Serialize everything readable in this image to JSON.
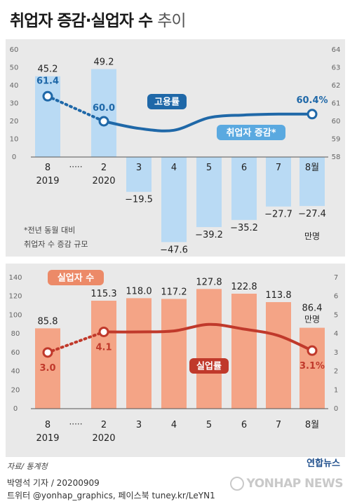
{
  "title": "취업자 증감·실업자 수",
  "title_sub": "추이",
  "chart_data": [
    {
      "type": "bar",
      "title": "취업자 증감",
      "unit": "만명",
      "categories": [
        "8",
        "2",
        "3",
        "4",
        "5",
        "6",
        "7",
        "8월"
      ],
      "year_labels": [
        "2019",
        "2020"
      ],
      "gap_mark": "·····",
      "values": [
        45.2,
        49.2,
        -19.5,
        -47.6,
        -39.2,
        -35.2,
        -27.7,
        -27.4
      ],
      "value_labels": [
        "45.2",
        "49.2",
        "−19.5",
        "−47.6",
        "−39.2",
        "−35.2",
        "−27.7",
        "−27.4"
      ],
      "ylim": [
        -60,
        60
      ],
      "yticks_left": [
        "60",
        "50",
        "40",
        "30",
        "20",
        "10",
        "0"
      ],
      "line": {
        "name": "고용률",
        "values": [
          61.4,
          60.0,
          null,
          59.5,
          null,
          null,
          null,
          60.4
        ],
        "labels": [
          "61.4",
          "60.0",
          "",
          "",
          "",
          "",
          "",
          "60.4%"
        ],
        "curve": [
          61.4,
          60.0,
          59.6,
          59.5,
          60.2,
          60.35,
          60.4,
          60.4
        ]
      },
      "y2lim": [
        58,
        64
      ],
      "yticks_right": [
        "64",
        "63",
        "62",
        "61",
        "60",
        "59",
        "58"
      ],
      "legend_bar": "취업자 증감*",
      "note": [
        "*전년 동월 대비",
        "취업자 수 증감 규모"
      ],
      "colors": {
        "bar": "#b9daf4",
        "line": "#1f68a8",
        "label_box": "#1f68a8",
        "legend_box": "#5aa9e0"
      }
    },
    {
      "type": "bar",
      "title": "실업자 수",
      "unit": "만명",
      "categories": [
        "8",
        "2",
        "3",
        "4",
        "5",
        "6",
        "7",
        "8월"
      ],
      "year_labels": [
        "2019",
        "2020"
      ],
      "gap_mark": "·····",
      "values": [
        85.8,
        115.3,
        118.0,
        117.2,
        127.8,
        122.8,
        113.8,
        86.4
      ],
      "value_labels": [
        "85.8",
        "115.3",
        "118.0",
        "117.2",
        "127.8",
        "122.8",
        "113.8",
        "86.4"
      ],
      "ylim": [
        0,
        140
      ],
      "yticks_left": [
        "140",
        "120",
        "100",
        "80",
        "60",
        "40",
        "20",
        "0"
      ],
      "line": {
        "name": "실업률",
        "values": [
          3.0,
          4.1,
          null,
          null,
          null,
          null,
          null,
          3.1
        ],
        "labels": [
          "3.0",
          "4.1",
          "",
          "",
          "",
          "",
          "",
          "3.1%"
        ],
        "curve": [
          3.0,
          4.1,
          4.1,
          4.15,
          4.5,
          4.25,
          3.9,
          3.1
        ]
      },
      "y2lim": [
        0,
        7
      ],
      "yticks_right": [
        "7",
        "6",
        "5",
        "4",
        "3",
        "2",
        "1",
        "0"
      ],
      "legend_bar": "실업자 수",
      "colors": {
        "bar": "#f4a486",
        "line": "#c0392b",
        "label_box": "#c0392b",
        "legend_box": "#ec8a68"
      }
    }
  ],
  "footer": {
    "source": "자료/ 통계청",
    "byline": "박영석 기자 / 20200909",
    "sns": "트위터 @yonhap_graphics, 페이스북 tuney.kr/LeYN1",
    "logo_small": "연합뉴스",
    "logo_big": "YONHAP NEWS"
  }
}
